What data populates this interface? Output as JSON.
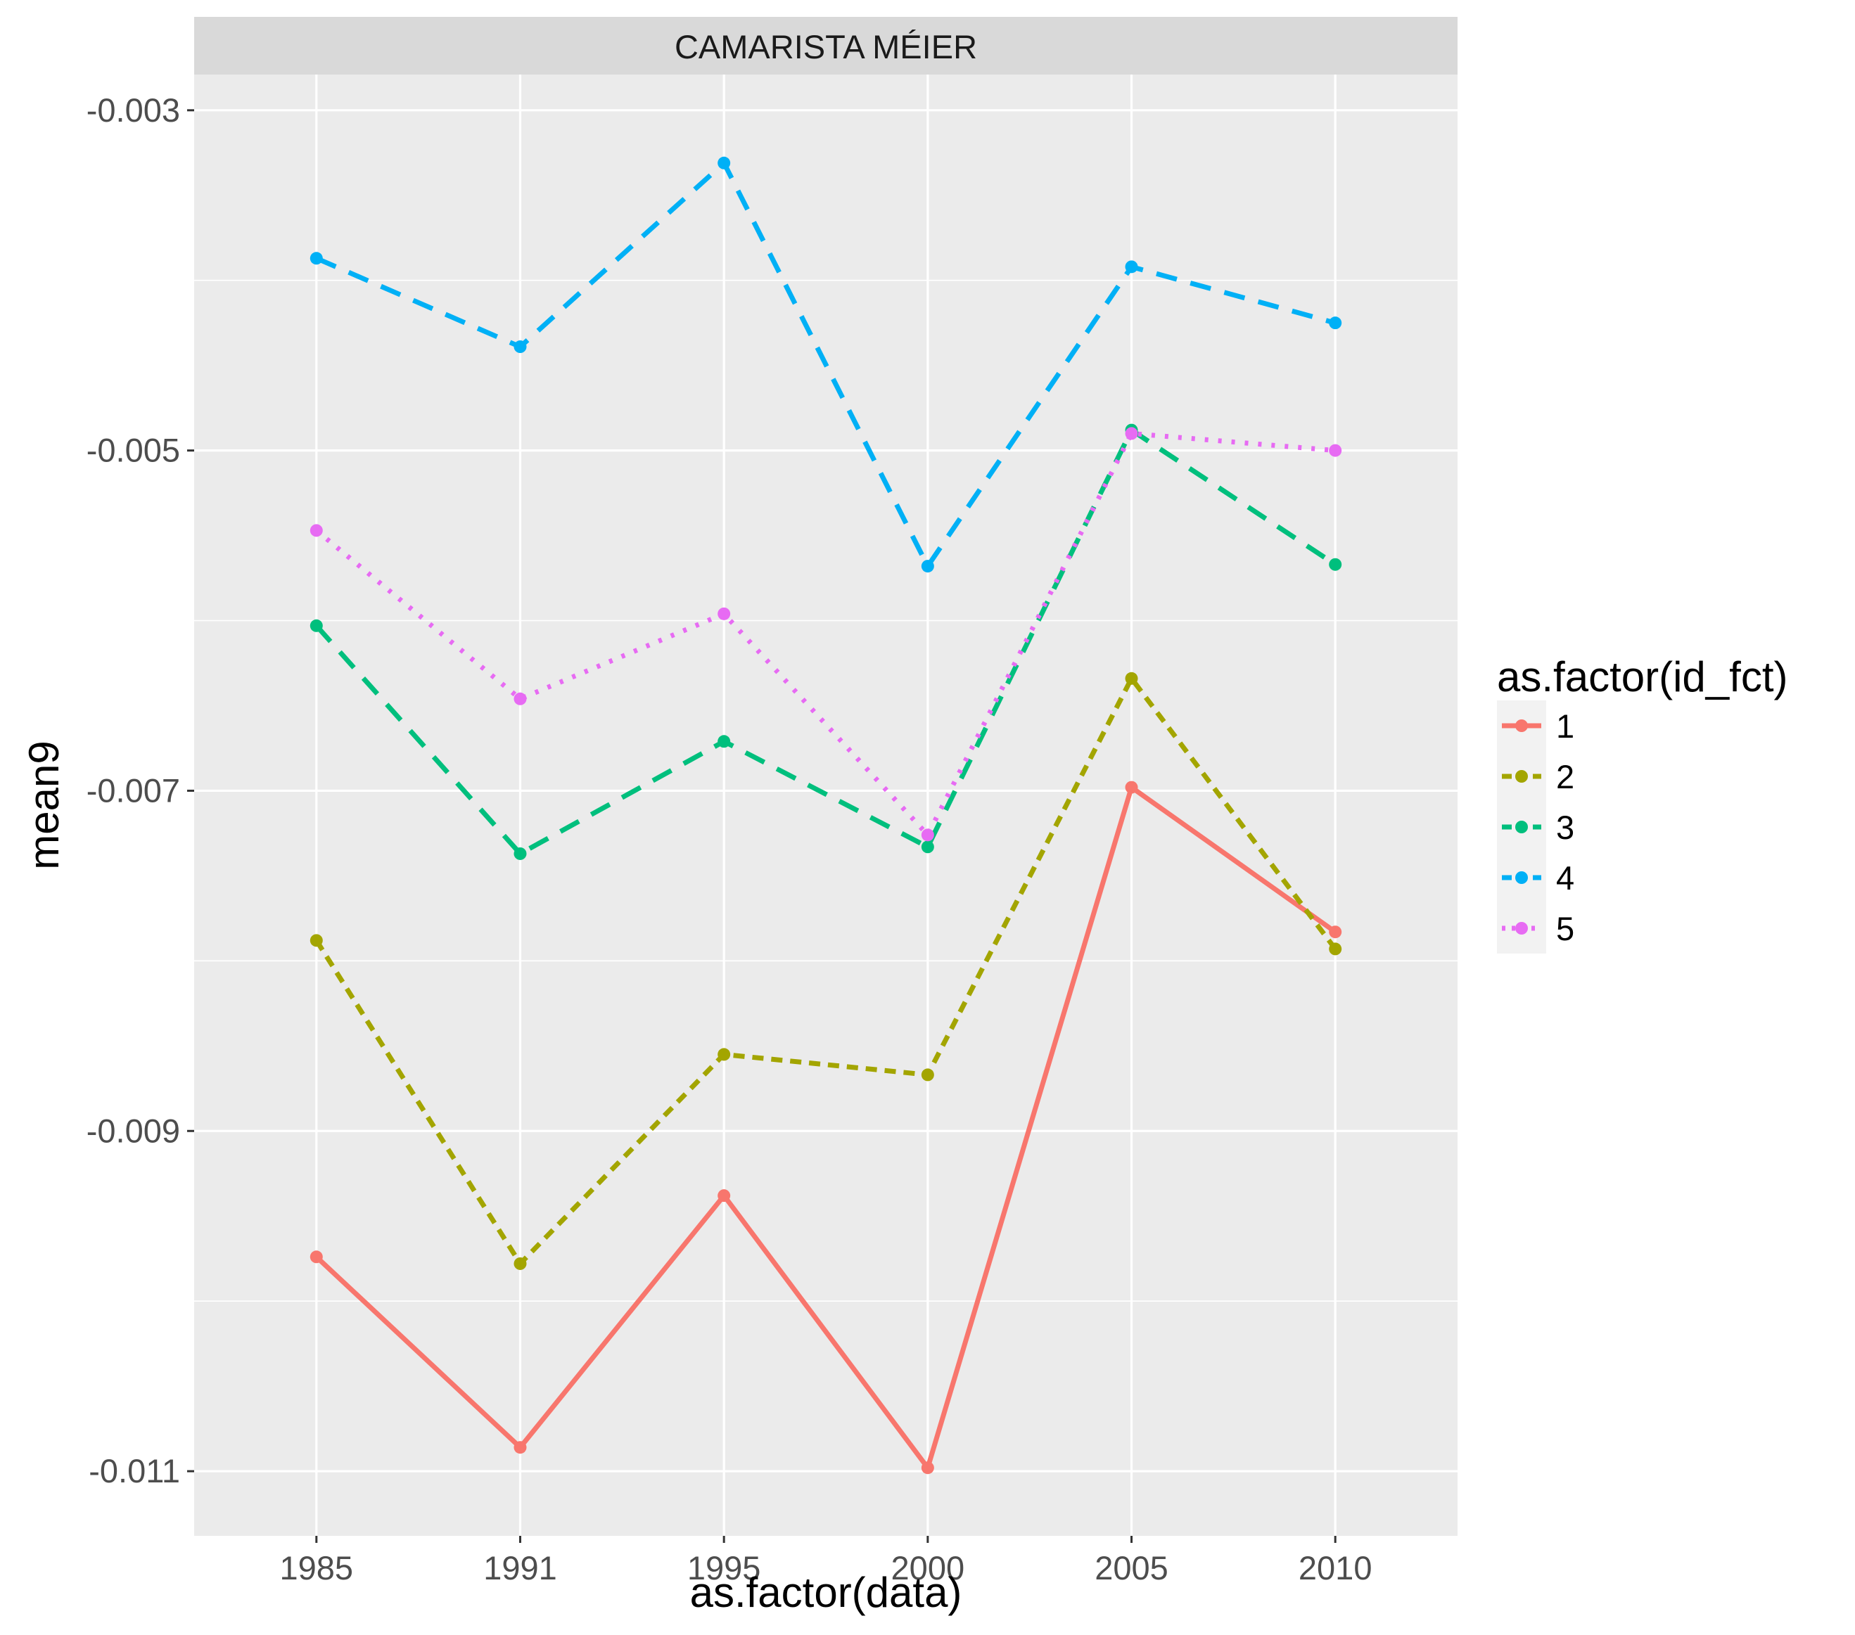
{
  "chart_data": {
    "type": "line",
    "facet_label": "CAMARISTA MÉIER",
    "xlabel": "as.factor(data)",
    "ylabel": "mean9",
    "categories": [
      "1985",
      "1991",
      "1995",
      "2000",
      "2005",
      "2010"
    ],
    "y_ticks": [
      -0.003,
      -0.005,
      -0.007,
      -0.009,
      -0.011
    ],
    "y_tick_labels": [
      "-0.003",
      "-0.005",
      "-0.007",
      "-0.009",
      "-0.011"
    ],
    "ylim": [
      -0.01138,
      -0.00279
    ],
    "grid": true,
    "legend": {
      "title": "as.factor(id_fct)",
      "position": "right"
    },
    "series": [
      {
        "name": "1",
        "color": "#F8766D",
        "linestyle": "solid",
        "values": [
          -0.00974,
          -0.01086,
          -0.00938,
          -0.01098,
          -0.00698,
          -0.00783
        ]
      },
      {
        "name": "2",
        "color": "#A3A500",
        "linestyle": "dashed-short",
        "values": [
          -0.00788,
          -0.00978,
          -0.00855,
          -0.00867,
          -0.00634,
          -0.00793
        ]
      },
      {
        "name": "3",
        "color": "#00BF7D",
        "linestyle": "dashed-long",
        "values": [
          -0.00603,
          -0.00737,
          -0.00671,
          -0.00733,
          -0.00488,
          -0.00567
        ]
      },
      {
        "name": "4",
        "color": "#00B0F6",
        "linestyle": "dashed-long",
        "values": [
          -0.00387,
          -0.00439,
          -0.00331,
          -0.00568,
          -0.00392,
          -0.00425
        ]
      },
      {
        "name": "5",
        "color": "#E76BF3",
        "linestyle": "dotted",
        "values": [
          -0.00547,
          -0.00646,
          -0.00596,
          -0.00726,
          -0.0049,
          -0.005
        ]
      }
    ]
  }
}
